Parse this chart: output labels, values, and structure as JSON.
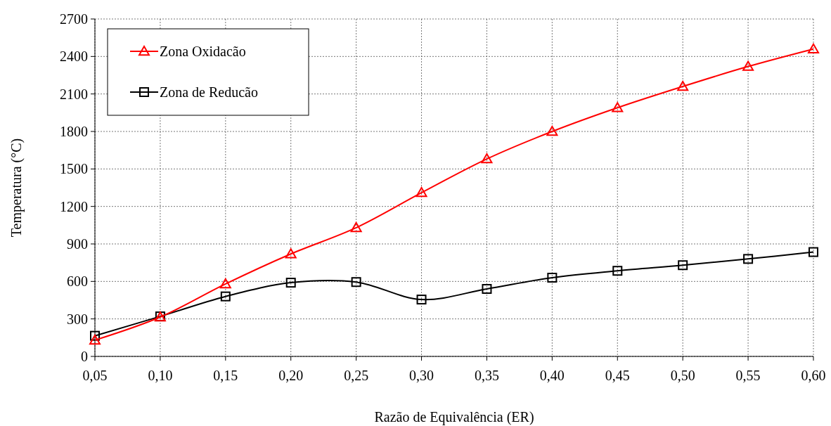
{
  "chart_data": {
    "type": "line",
    "xlabel": "Razão de Equivalência (ER)",
    "ylabel": "Temperatura (°C)",
    "x": [
      0.05,
      0.1,
      0.15,
      0.2,
      0.25,
      0.3,
      0.35,
      0.4,
      0.45,
      0.5,
      0.55,
      0.6
    ],
    "series": [
      {
        "name": "Zona Oxidacão",
        "color": "#ff0000",
        "marker": "triangle",
        "values": [
          130,
          315,
          580,
          820,
          1030,
          1310,
          1580,
          1800,
          1990,
          2160,
          2320,
          2460
        ]
      },
      {
        "name": "Zona de Reducão",
        "color": "#000000",
        "marker": "square",
        "values": [
          165,
          320,
          480,
          590,
          595,
          455,
          540,
          630,
          685,
          730,
          780,
          835
        ]
      }
    ],
    "xlim": [
      0.05,
      0.6
    ],
    "xticks": [
      {
        "value": 0.05,
        "label": "0,05"
      },
      {
        "value": 0.1,
        "label": "0,10"
      },
      {
        "value": 0.15,
        "label": "0,15"
      },
      {
        "value": 0.2,
        "label": "0,20"
      },
      {
        "value": 0.25,
        "label": "0,25"
      },
      {
        "value": 0.3,
        "label": "0,30"
      },
      {
        "value": 0.35,
        "label": "0,35"
      },
      {
        "value": 0.4,
        "label": "0,40"
      },
      {
        "value": 0.45,
        "label": "0,45"
      },
      {
        "value": 0.5,
        "label": "0,50"
      },
      {
        "value": 0.55,
        "label": "0,55"
      },
      {
        "value": 0.6,
        "label": "0,60"
      }
    ],
    "ylim": [
      0,
      2700
    ],
    "yticks": [
      0,
      300,
      600,
      900,
      1200,
      1500,
      1800,
      2100,
      2400,
      2700
    ],
    "grid": true,
    "legend": "top left",
    "line_style": "solid"
  }
}
